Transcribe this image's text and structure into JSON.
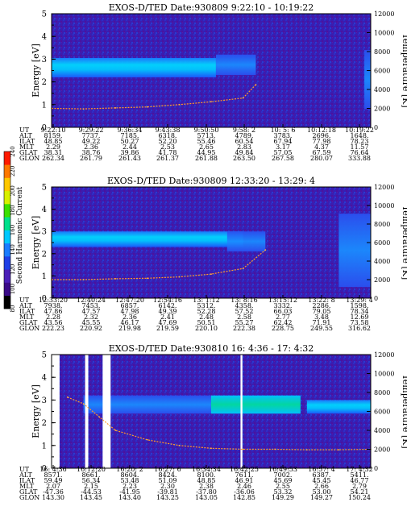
{
  "colorbar": {
    "label": "Second Harmonic Current",
    "ticks": [
      "80",
      "100",
      "120",
      "140",
      "160",
      "180",
      "200",
      "220",
      "240"
    ],
    "colors": [
      "#000000",
      "#3a0a88",
      "#4b1fb8",
      "#1f3fe6",
      "#1a7cff",
      "#00c8ff",
      "#00e08a",
      "#3ce000",
      "#d8f000",
      "#ffc800",
      "#ff7800",
      "#ff1a00"
    ]
  },
  "chart_data": [
    {
      "type": "heatmap",
      "title": "EXOS-D/TED   Date:930809  9:22:10 - 10:19:22",
      "ylabel": "Energy [eV]",
      "y2label": "Temperature [K]",
      "ylim": [
        0,
        5
      ],
      "y2lim": [
        0,
        12000
      ],
      "yticks": [
        "0",
        "1",
        "2",
        "3",
        "4",
        "5"
      ],
      "y2ticks": [
        "0",
        "2000",
        "4000",
        "6000",
        "8000",
        "10000",
        "12000"
      ],
      "ephemeris_labels": [
        "UT",
        "ALT",
        "ILAT",
        "MLT",
        "GLAT",
        "GLON"
      ],
      "ephemeris": [
        [
          "9:22:10",
          "8159.",
          "48.85",
          "2.29",
          "38.31",
          "262.34"
        ],
        [
          "9:29:22",
          "7737.",
          "49.22",
          "2.36",
          "38.76",
          "261.79"
        ],
        [
          "9:36:34",
          "7185.",
          "50.27",
          "2.44",
          "39.86",
          "261.43"
        ],
        [
          "9:43:38",
          "6318.",
          "52.20",
          "2.53",
          "41.78",
          "261.37"
        ],
        [
          "9:50:50",
          "5713.",
          "55.46",
          "2.65",
          "44.95",
          "261.88"
        ],
        [
          "9:58: 2",
          "4789.",
          "60.54",
          "2.83",
          "49.84",
          "263.50"
        ],
        [
          "10: 5: 6",
          "3783.",
          "67.94",
          "3.17",
          "57.05",
          "267.58"
        ],
        [
          "10:12:18",
          "2696.",
          "77.98",
          "4.37",
          "67.59",
          "280.07"
        ],
        [
          "10:19:22",
          "1648.",
          "78.23",
          "11.57",
          "76.64",
          "333.88"
        ]
      ],
      "bands": [
        {
          "x0": 0.0,
          "x1": 0.515,
          "y0": 2.2,
          "y1": 3.05,
          "level": "high"
        },
        {
          "x0": 0.515,
          "x1": 0.64,
          "y0": 2.3,
          "y1": 3.2,
          "level": "medium"
        },
        {
          "x0": 0.98,
          "x1": 1.0,
          "y0": 0.8,
          "y1": 3.4,
          "level": "medium"
        }
      ],
      "temperature_trace": {
        "x": [
          0.0,
          0.1,
          0.2,
          0.3,
          0.4,
          0.5,
          0.6,
          0.64
        ],
        "y": [
          2000,
          1950,
          2050,
          2150,
          2400,
          2700,
          3100,
          4500
        ]
      }
    },
    {
      "type": "heatmap",
      "title": "EXOS-D/TED   Date:930809  12:33:20 - 13:29: 4",
      "ylabel": "Energy [eV]",
      "y2label": "Temperature [K]",
      "ylim": [
        0,
        5
      ],
      "y2lim": [
        0,
        12000
      ],
      "yticks": [
        "0",
        "1",
        "2",
        "3",
        "4",
        "5"
      ],
      "y2ticks": [
        "0",
        "2000",
        "4000",
        "6000",
        "8000",
        "10000",
        "12000"
      ],
      "ephemeris_labels": [
        "UT",
        "ALT",
        "ILAT",
        "MLT",
        "GLAT",
        "GLON"
      ],
      "ephemeris": [
        [
          "12:33:20",
          "7938.",
          "47.86",
          "2.28",
          "43.56",
          "222.23"
        ],
        [
          "12:40:24",
          "7453.",
          "47.57",
          "2.32",
          "45.55",
          "220.92"
        ],
        [
          "12:47:20",
          "6857.",
          "47.98",
          "2.36",
          "46.17",
          "219.98"
        ],
        [
          "12:54:16",
          "6142.",
          "49.39",
          "2.41",
          "47.69",
          "219.59"
        ],
        [
          "13: 1:12",
          "5312.",
          "52.28",
          "2.48",
          "50.51",
          "220.10"
        ],
        [
          "13: 8:16",
          "4358.",
          "57.52",
          "2.58",
          "55.27",
          "222.38"
        ],
        [
          "13:15:12",
          "3332.",
          "66.03",
          "2.77",
          "62.42",
          "228.75"
        ],
        [
          "13:22: 8",
          "2286.",
          "79.05",
          "3.48",
          "71.91",
          "249.55"
        ],
        [
          "13:29: 4",
          "1598.",
          "78.34",
          "12.69",
          "73.58",
          "316.62"
        ]
      ],
      "bands": [
        {
          "x0": 0.0,
          "x1": 0.6,
          "y0": 2.3,
          "y1": 3.0,
          "level": "high"
        },
        {
          "x0": 0.55,
          "x1": 0.67,
          "y0": 2.1,
          "y1": 3.0,
          "level": "medium"
        },
        {
          "x0": 0.9,
          "x1": 1.0,
          "y0": 0.5,
          "y1": 3.8,
          "level": "medium"
        }
      ],
      "temperature_trace": {
        "x": [
          0.0,
          0.1,
          0.2,
          0.3,
          0.4,
          0.5,
          0.6,
          0.67
        ],
        "y": [
          2000,
          2000,
          2100,
          2150,
          2300,
          2600,
          3200,
          5200
        ]
      }
    },
    {
      "type": "heatmap",
      "title": "EXOS-D/TED   Date:930810  16: 4:36 - 17: 4:32",
      "ylabel": "Energy [eV]",
      "y2label": "Temperature [K]",
      "ylim": [
        0,
        5
      ],
      "y2lim": [
        0,
        12000
      ],
      "yticks": [
        "0",
        "1",
        "2",
        "3",
        "4",
        "5"
      ],
      "y2ticks": [
        "0",
        "2000",
        "4000",
        "6000",
        "8000",
        "10000",
        "12000"
      ],
      "ephemeris_labels": [
        "UT",
        "ALT",
        "ILAT",
        "MLT",
        "GLAT",
        "GLON"
      ],
      "ephemeris": [
        [
          "16: 4:36",
          "8571.",
          "59.49",
          "2.07",
          "-47.36",
          "143.30"
        ],
        [
          "16:12:20",
          "8661.",
          "56.34",
          "2.15",
          "-44.53",
          "143.45"
        ],
        [
          "16:20: 2",
          "8604.",
          "53.48",
          "2.23",
          "-41.95",
          "143.40"
        ],
        [
          "16:27: 6",
          "8424.",
          "51.09",
          "2.30",
          "-39.81",
          "143.25"
        ],
        [
          "16:34:34",
          "8100.",
          "48.85",
          "2.38",
          "-37.80",
          "143.05"
        ],
        [
          "16:42:25",
          "7611.",
          "46.91",
          "2.46",
          "-36.06",
          "142.85"
        ],
        [
          "16:49:53",
          "7002.",
          "45.69",
          "2.55",
          "53.32",
          "149.29"
        ],
        [
          "16:57: 4",
          "6387.",
          "45.45",
          "2.66",
          "53.00",
          "149.27"
        ],
        [
          "17: 4:32",
          "5411.",
          "46.77",
          "2.79",
          "54.21",
          "150.24"
        ]
      ],
      "bands": [
        {
          "x0": 0.1,
          "x1": 0.5,
          "y0": 2.4,
          "y1": 3.2,
          "level": "medium"
        },
        {
          "x0": 0.5,
          "x1": 0.78,
          "y0": 2.4,
          "y1": 3.2,
          "level": "high"
        },
        {
          "x0": 0.8,
          "x1": 1.0,
          "y0": 2.4,
          "y1": 3.0,
          "level": "high"
        }
      ],
      "temperature_trace": {
        "x": [
          0.05,
          0.1,
          0.15,
          0.2,
          0.3,
          0.4,
          0.5,
          0.6,
          0.7,
          0.8,
          0.9,
          1.0
        ],
        "y": [
          7500,
          6800,
          5400,
          4000,
          3000,
          2400,
          2100,
          2000,
          2000,
          1950,
          1950,
          2000
        ]
      }
    }
  ]
}
